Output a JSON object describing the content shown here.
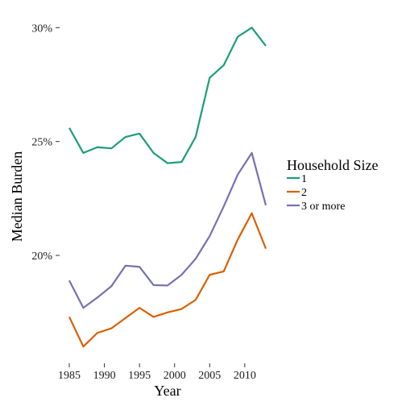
{
  "chart_data": {
    "type": "line",
    "xlabel": "Year",
    "ylabel": "Median Burden",
    "xlim": [
      1985,
      2013
    ],
    "ylim": [
      15.3,
      30.4
    ],
    "x_ticks": [
      1985,
      1990,
      1995,
      2000,
      2005,
      2010
    ],
    "x_tick_labels": [
      "1985",
      "1990",
      "1995",
      "2000",
      "2005",
      "2010"
    ],
    "y_ticks": [
      20,
      25,
      30
    ],
    "y_tick_labels": [
      "20%",
      "25%",
      "30%"
    ],
    "grid": false,
    "legend": {
      "title": "Household Size",
      "placement": "right"
    },
    "x": [
      1985,
      1987,
      1989,
      1991,
      1993,
      1995,
      1997,
      1999,
      2001,
      2003,
      2005,
      2007,
      2009,
      2011,
      2013
    ],
    "series": [
      {
        "name": "1",
        "color": "#1b9e77",
        "values": [
          25.6,
          24.5,
          24.75,
          24.7,
          25.2,
          25.35,
          24.5,
          24.05,
          24.1,
          25.2,
          27.8,
          28.35,
          29.6,
          30.0,
          29.2
        ]
      },
      {
        "name": "2",
        "color": "#d95f02",
        "values": [
          17.3,
          16.0,
          16.6,
          16.8,
          17.25,
          17.7,
          17.3,
          17.5,
          17.65,
          18.05,
          19.15,
          19.3,
          20.7,
          21.85,
          20.3
        ]
      },
      {
        "name": "3 or more",
        "color": "#7570b3",
        "values": [
          18.9,
          17.7,
          18.15,
          18.65,
          19.55,
          19.5,
          18.7,
          18.68,
          19.15,
          19.85,
          20.85,
          22.15,
          23.55,
          24.5,
          22.2
        ]
      }
    ]
  }
}
